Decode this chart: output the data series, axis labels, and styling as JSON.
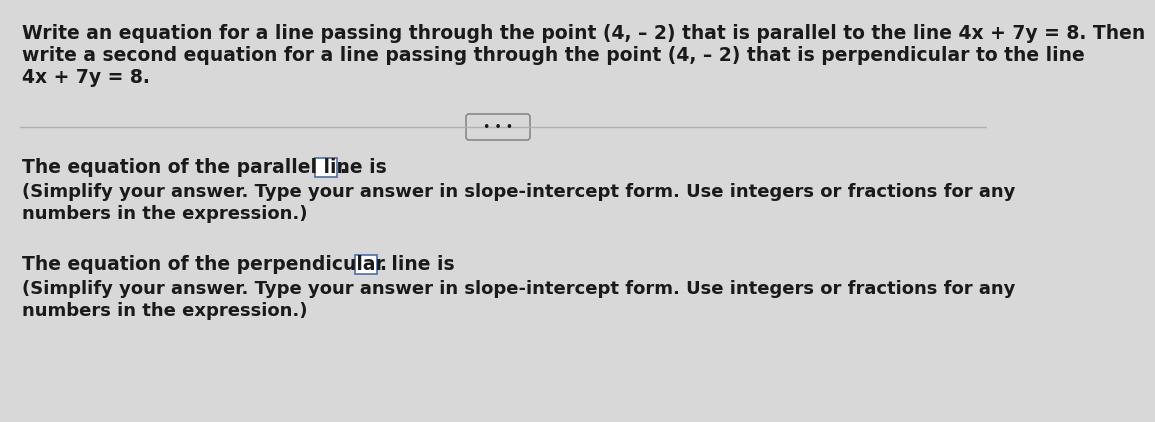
{
  "background_color": "#d8d8d8",
  "top_text_line1": "Write an equation for a line passing through the point (4, – 2) that is parallel to the line 4x + 7y = 8. Then",
  "top_text_line2": "write a second equation for a line passing through the point (4, – 2) that is perpendicular to the line",
  "top_text_line3": "4x + 7y = 8.",
  "divider_dots": "• • •",
  "parallel_label": "The equation of the parallel line is",
  "parallel_hint_line1": "(Simplify your answer. Type your answer in slope-intercept form. Use integers or fractions for any",
  "parallel_hint_line2": "numbers in the expression.)",
  "perpendicular_label": "The equation of the perpendicular line is",
  "perpendicular_hint_line1": "(Simplify your answer. Type your answer in slope-intercept form. Use integers or fractions for any",
  "perpendicular_hint_line2": "numbers in the expression.)",
  "font_size_main": 13.5,
  "font_size_hint": 13.0,
  "text_color": "#1a1a1a",
  "line_color": "#b0b0b0",
  "box_face_color": "#ffffff",
  "box_edge_color": "#4a6fa5",
  "dot_button_edge": "#888888"
}
